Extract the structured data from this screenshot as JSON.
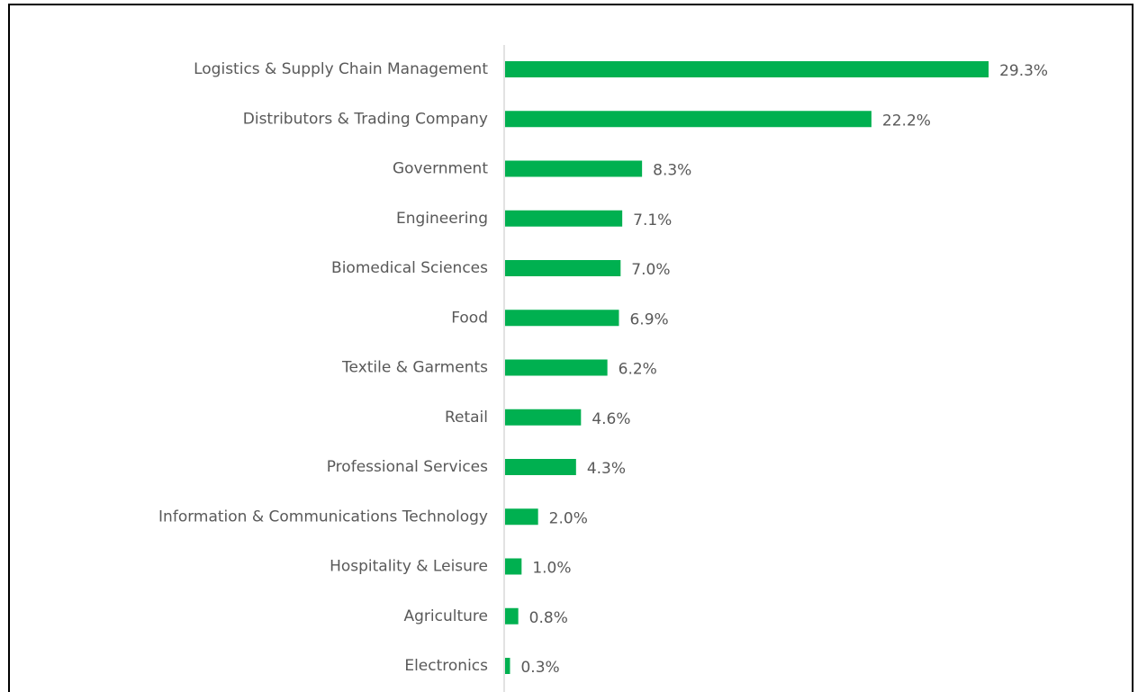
{
  "chart_data": {
    "type": "bar",
    "orientation": "horizontal",
    "categories": [
      "Logistics & Supply Chain Management",
      "Distributors & Trading Company",
      "Government",
      "Engineering",
      "Biomedical Sciences",
      "Food",
      "Textile & Garments",
      "Retail",
      "Professional Services",
      "Information & Communications Technology",
      "Hospitality & Leisure",
      "Agriculture",
      "Electronics"
    ],
    "values": [
      29.3,
      22.2,
      8.3,
      7.1,
      7.0,
      6.9,
      6.2,
      4.6,
      4.3,
      2.0,
      1.0,
      0.8,
      0.3
    ],
    "value_labels": [
      "29.3%",
      "22.2%",
      "8.3%",
      "7.1%",
      "7.0%",
      "6.9%",
      "6.2%",
      "4.6%",
      "4.3%",
      "2.0%",
      "1.0%",
      "0.8%",
      "0.3%"
    ],
    "color": "#00b050"
  }
}
